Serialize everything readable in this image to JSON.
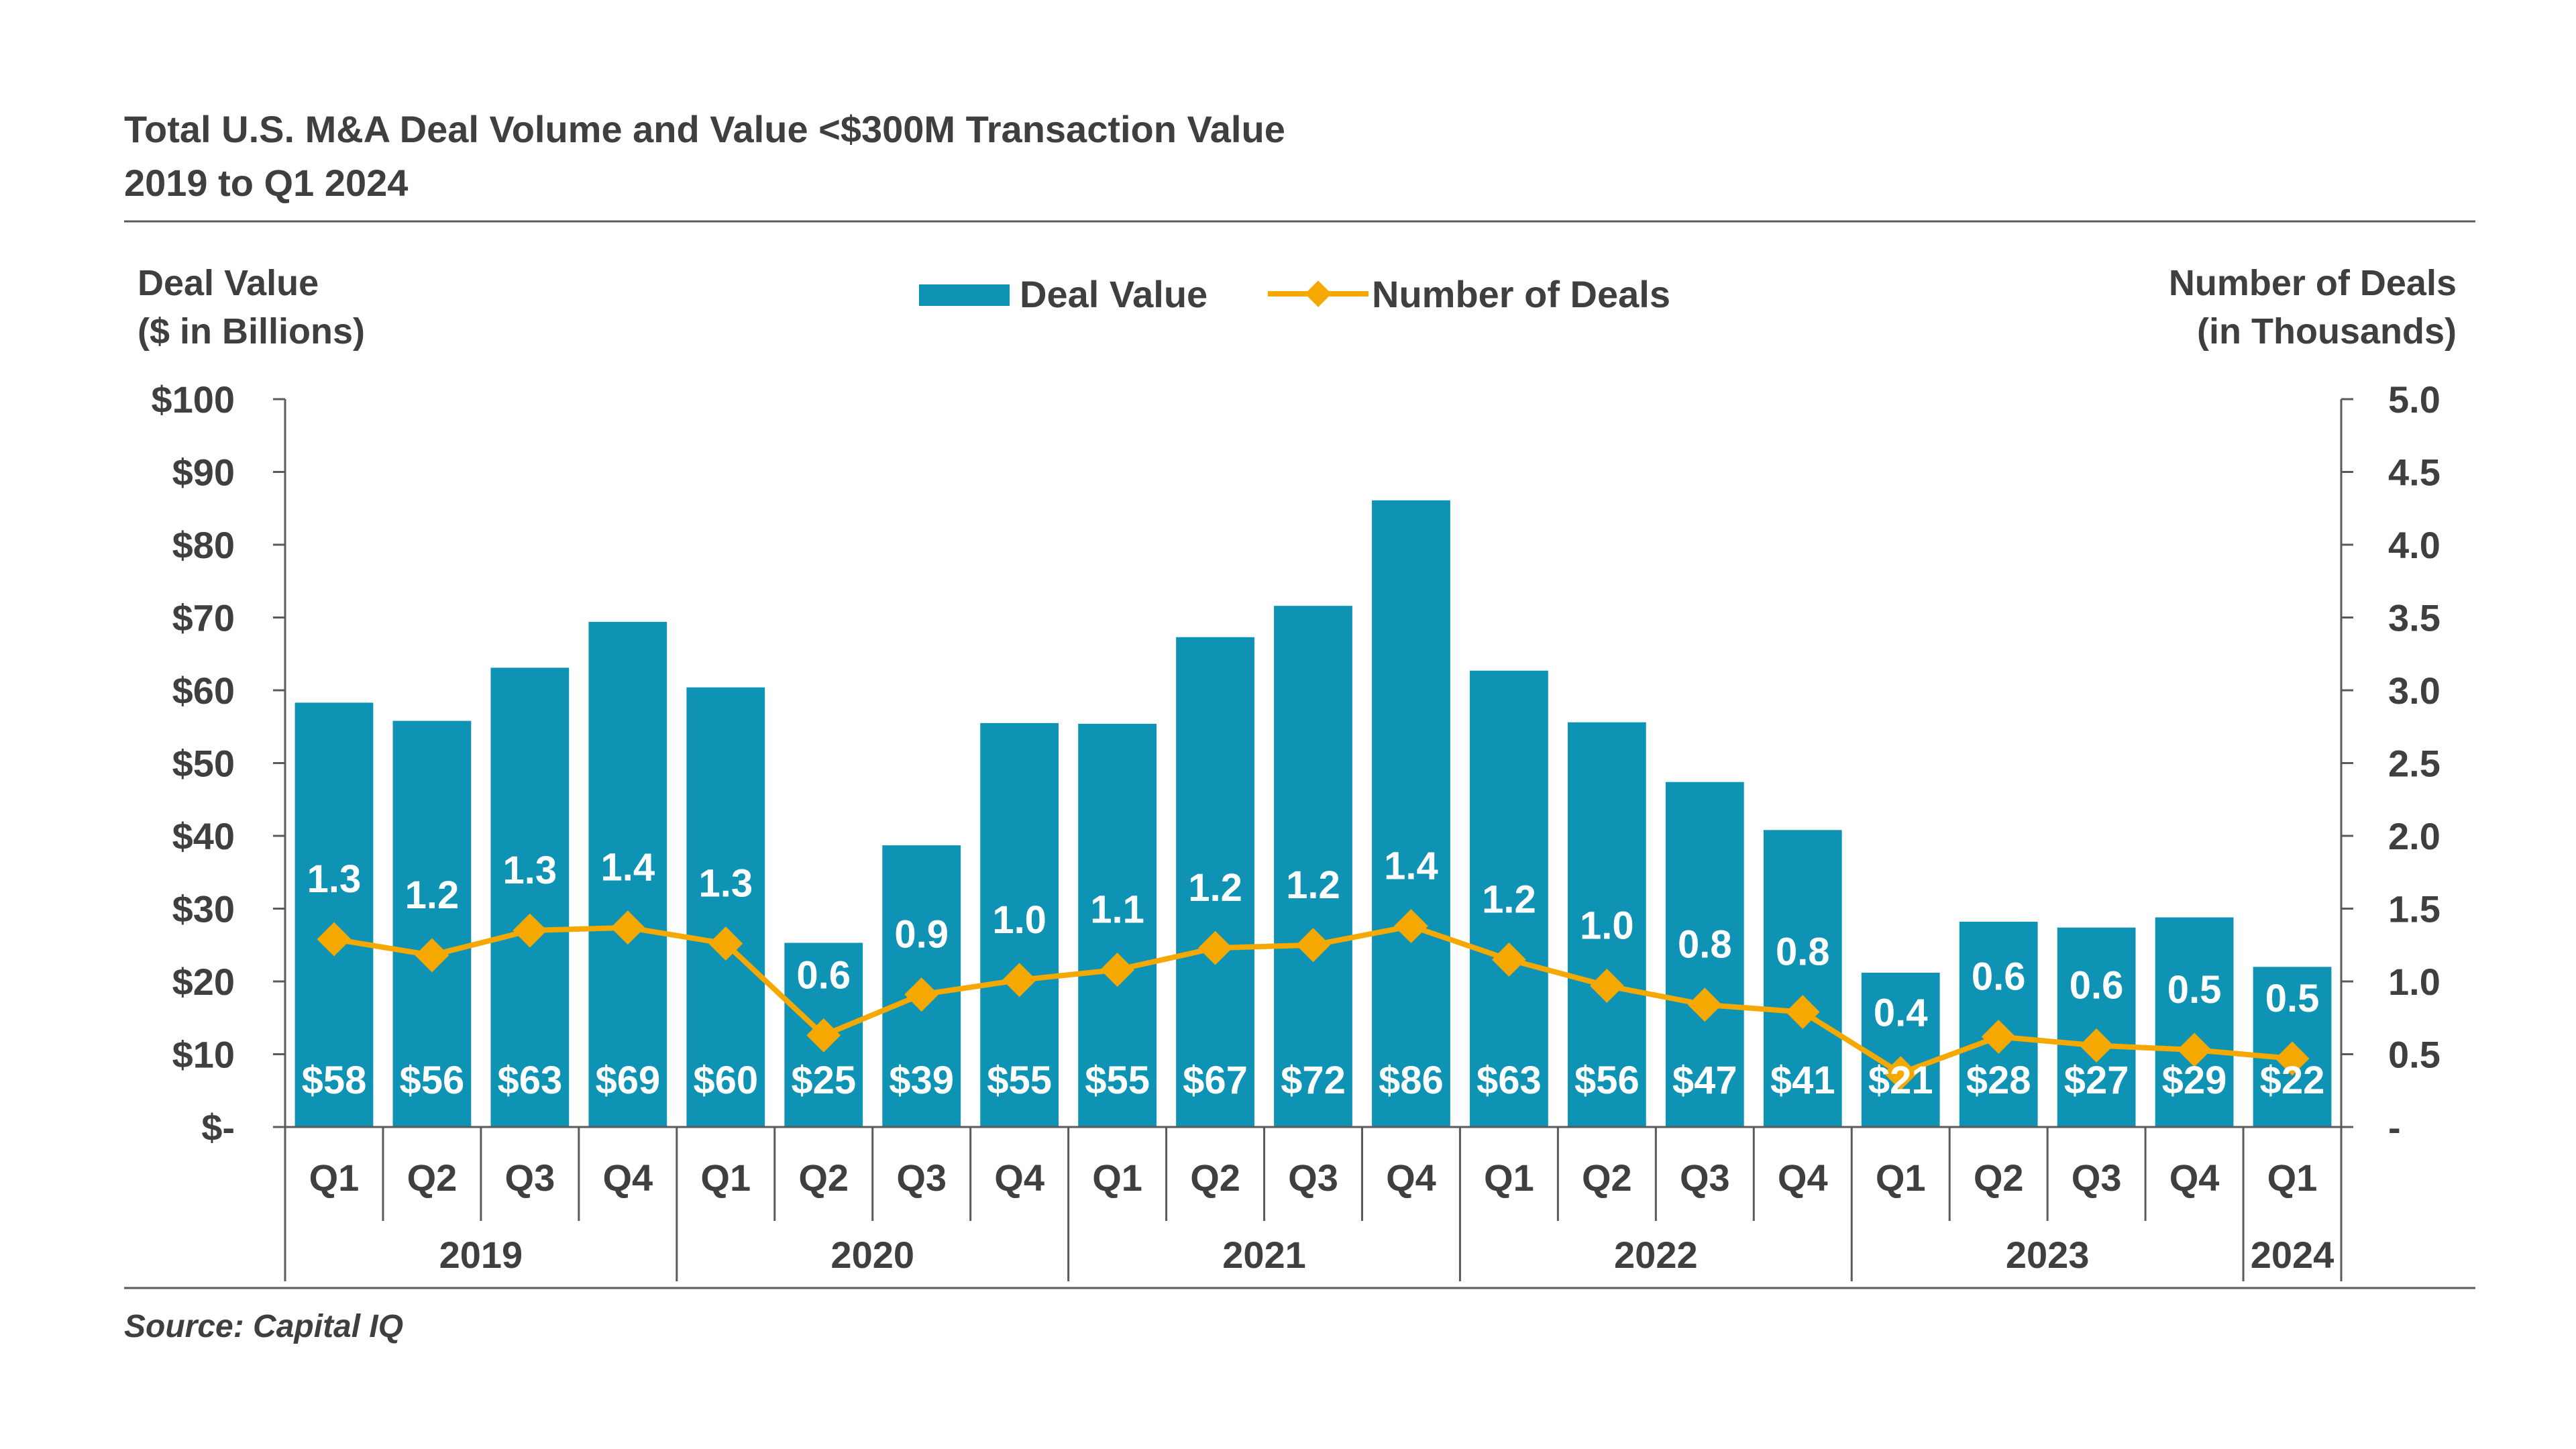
{
  "title": "Total U.S. M&A Deal Volume and Value <$300M Transaction Value",
  "subtitle": "2019 to Q1 2024",
  "source": "Source: Capital IQ",
  "colors": {
    "bar": "#0E93B5",
    "line": "#F5A800",
    "text": "#3f3f3f",
    "rule": "#5a5a5a"
  },
  "chart_data": {
    "type": "bar",
    "y_left_label": [
      "Deal Value",
      "($ in Billions)"
    ],
    "y_right_label": [
      "Number of Deals",
      "(in Thousands)"
    ],
    "y_left_ticks": [
      "$-",
      "$10",
      "$20",
      "$30",
      "$40",
      "$50",
      "$60",
      "$70",
      "$80",
      "$90",
      "$100"
    ],
    "y_right_ticks": [
      "-",
      "0.5",
      "1.0",
      "1.5",
      "2.0",
      "2.5",
      "3.0",
      "3.5",
      "4.0",
      "4.5",
      "5.0"
    ],
    "ylim_left": [
      0,
      100
    ],
    "ylim_right": [
      0,
      5.0
    ],
    "legend": [
      "Deal Value",
      "Number of Deals"
    ],
    "legend_position": "top-center",
    "categories": [
      "Q1",
      "Q2",
      "Q3",
      "Q4",
      "Q1",
      "Q2",
      "Q3",
      "Q4",
      "Q1",
      "Q2",
      "Q3",
      "Q4",
      "Q1",
      "Q2",
      "Q3",
      "Q4",
      "Q1",
      "Q2",
      "Q3",
      "Q4",
      "Q1"
    ],
    "years": [
      {
        "label": "2019",
        "quarters": 4
      },
      {
        "label": "2020",
        "quarters": 4
      },
      {
        "label": "2021",
        "quarters": 4
      },
      {
        "label": "2022",
        "quarters": 4
      },
      {
        "label": "2023",
        "quarters": 4
      },
      {
        "label": "2024",
        "quarters": 1
      }
    ],
    "series": [
      {
        "name": "Deal Value",
        "type": "bar",
        "axis": "left",
        "values": [
          58.3,
          55.8,
          63.1,
          69.4,
          60.4,
          25.3,
          38.7,
          55.5,
          55.4,
          67.3,
          71.6,
          86.1,
          62.7,
          55.6,
          47.4,
          40.8,
          21.2,
          28.2,
          27.4,
          28.8,
          22.0
        ],
        "labels": [
          "$58",
          "$56",
          "$63",
          "$69",
          "$60",
          "$25",
          "$39",
          "$55",
          "$55",
          "$67",
          "$72",
          "$86",
          "$63",
          "$56",
          "$47",
          "$41",
          "$21",
          "$28",
          "$27",
          "$29",
          "$22"
        ]
      },
      {
        "name": "Number of Deals",
        "type": "line",
        "axis": "right",
        "values": [
          1.29,
          1.18,
          1.35,
          1.37,
          1.26,
          0.63,
          0.91,
          1.01,
          1.08,
          1.23,
          1.25,
          1.38,
          1.15,
          0.97,
          0.84,
          0.79,
          0.37,
          0.62,
          0.56,
          0.53,
          0.47
        ],
        "labels": [
          "1.3",
          "1.2",
          "1.3",
          "1.4",
          "1.3",
          "0.6",
          "0.9",
          "1.0",
          "1.1",
          "1.2",
          "1.2",
          "1.4",
          "1.2",
          "1.0",
          "0.8",
          "0.8",
          "0.4",
          "0.6",
          "0.6",
          "0.5",
          "0.5"
        ]
      }
    ]
  }
}
